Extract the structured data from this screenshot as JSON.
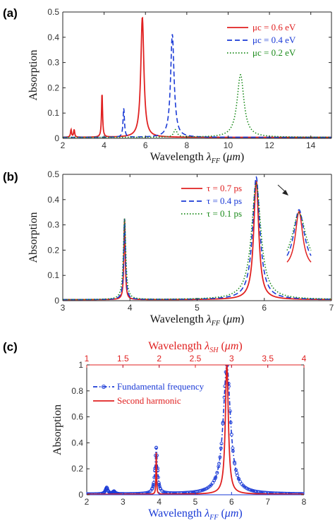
{
  "panels": [
    {
      "id": "a",
      "label": "(a)"
    },
    {
      "id": "b",
      "label": "(b)"
    },
    {
      "id": "c",
      "label": "(c)"
    }
  ],
  "chart_data": [
    {
      "type": "line",
      "panel": "(a)",
      "xlabel": "Wavelength λFF (μm)",
      "ylabel": "Absorption",
      "xlim": [
        2,
        15
      ],
      "ylim": [
        0,
        0.5
      ],
      "xticks": [
        2,
        4,
        6,
        8,
        10,
        12,
        14
      ],
      "yticks": [
        0,
        0.1,
        0.2,
        0.3,
        0.4,
        0.5
      ],
      "legend_position": "top-right",
      "series": [
        {
          "name": "μc = 0.6 eV",
          "color": "#e02020",
          "style": "solid",
          "peaks": [
            [
              2.4,
              0.03,
              0.03
            ],
            [
              2.55,
              0.03,
              0.03
            ],
            [
              3.9,
              0.175,
              0.03
            ],
            [
              5.85,
              0.475,
              0.09
            ]
          ]
        },
        {
          "name": "μc = 0.4 eV",
          "color": "#1a3ad6",
          "style": "dashed",
          "peaks": [
            [
              4.95,
              0.115,
              0.04
            ],
            [
              7.3,
              0.405,
              0.1
            ],
            [
              7.45,
              0.01,
              0.1
            ]
          ]
        },
        {
          "name": "μc = 0.2 eV",
          "color": "#1a8a1a",
          "style": "dotted",
          "peaks": [
            [
              7.45,
              0.03,
              0.1
            ],
            [
              10.6,
              0.248,
              0.2
            ]
          ]
        }
      ]
    },
    {
      "type": "line",
      "panel": "(b)",
      "xlabel": "Wavelength λFF (μm)",
      "ylabel": "Absorption",
      "xlim": [
        3,
        7
      ],
      "ylim": [
        0,
        0.5
      ],
      "xticks": [
        3,
        4,
        5,
        6,
        7
      ],
      "yticks": [
        0,
        0.1,
        0.2,
        0.3,
        0.4,
        0.5
      ],
      "legend_position": "top-center",
      "series": [
        {
          "name": "τ = 0.7 ps",
          "color": "#e02020",
          "style": "solid",
          "peaks": [
            [
              3.92,
              0.32,
              0.012
            ],
            [
              5.88,
              0.47,
              0.045
            ]
          ]
        },
        {
          "name": "τ = 0.4 ps",
          "color": "#1a3ad6",
          "style": "dashed",
          "peaks": [
            [
              3.92,
              0.32,
              0.016
            ],
            [
              5.88,
              0.485,
              0.065
            ]
          ]
        },
        {
          "name": "τ = 0.1 ps",
          "color": "#1a8a1a",
          "style": "dotted",
          "peaks": [
            [
              3.92,
              0.32,
              0.022
            ],
            [
              5.88,
              0.46,
              0.085
            ]
          ]
        }
      ]
    },
    {
      "type": "line",
      "panel": "(c)",
      "xlabel": "Wavelength λFF (μm)",
      "ylabel": "Absorption",
      "top_xlabel": "Wavelength λSH (μm)",
      "xlim": [
        2,
        8
      ],
      "top_xlim": [
        1,
        4
      ],
      "ylim": [
        0,
        1
      ],
      "xticks": [
        2,
        3,
        4,
        5,
        6,
        7,
        8
      ],
      "top_xticks": [
        1,
        1.5,
        2,
        2.5,
        3,
        3.5,
        4
      ],
      "yticks": [
        0,
        0.2,
        0.4,
        0.6,
        0.8,
        1
      ],
      "legend_position": "top-left",
      "series": [
        {
          "name": "Fundamental frequency",
          "color": "#1a3ad6",
          "style": "dash-dot-circle",
          "peaks": [
            [
              2.55,
              0.05,
              0.04
            ],
            [
              2.75,
              0.02,
              0.04
            ],
            [
              3.92,
              0.355,
              0.04
            ],
            [
              5.87,
              1.0,
              0.12
            ]
          ]
        },
        {
          "name": "Second harmonic",
          "color": "#e02020",
          "style": "solid",
          "peaks": [
            [
              3.92,
              0.32,
              0.01
            ],
            [
              5.87,
              1.0,
              0.05
            ]
          ]
        }
      ]
    }
  ]
}
